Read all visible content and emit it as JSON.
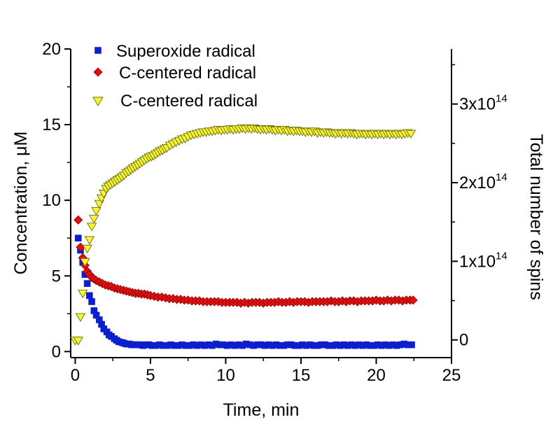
{
  "chart_data": {
    "type": "scatter",
    "title": "",
    "xlabel": "Time, min",
    "ylabel": "Concentration, μM",
    "y2label": "Total number of spins",
    "xlim": [
      -0.3,
      25
    ],
    "ylim": [
      -0.4,
      20
    ],
    "y2lim": [
      -22500000000000.0,
      370000000000000.0
    ],
    "x_ticks": [
      "0",
      "5",
      "10",
      "15",
      "20",
      "25"
    ],
    "y_ticks": [
      "0",
      "5",
      "10",
      "15",
      "20"
    ],
    "y2_ticks": [
      {
        "base": "0",
        "exp": ""
      },
      {
        "base": "1x10",
        "exp": "14"
      },
      {
        "base": "2x10",
        "exp": "14"
      },
      {
        "base": "3x10",
        "exp": "14"
      }
    ],
    "legend_position": "top-left",
    "series": [
      {
        "name": "Superoxide radical",
        "marker": "square",
        "color": "#0b1fcf",
        "axis": "left",
        "x": [
          0.2,
          0.35,
          0.5,
          0.65,
          0.8,
          0.95,
          1.1,
          1.25,
          1.4,
          1.6,
          1.75,
          1.9,
          2.1,
          2.25,
          2.4,
          2.6,
          2.75,
          2.9,
          3.1,
          3.25,
          3.4,
          3.6,
          3.75,
          3.9,
          4.1,
          4.3,
          4.5,
          4.7,
          4.9,
          5.1,
          5.35,
          5.6,
          5.85,
          6.1,
          6.35,
          6.6,
          6.85,
          7.1,
          7.35,
          7.6,
          7.85,
          8.1,
          8.35,
          8.6,
          8.85,
          9.1,
          9.35,
          9.6,
          9.85,
          10.1,
          10.35,
          10.6,
          10.85,
          11.1,
          11.35,
          11.6,
          11.85,
          12.1,
          12.35,
          12.6,
          12.85,
          13.1,
          13.35,
          13.6,
          13.85,
          14.1,
          14.35,
          14.6,
          14.85,
          15.1,
          15.35,
          15.6,
          15.85,
          16.1,
          16.35,
          16.6,
          16.85,
          17.1,
          17.35,
          17.6,
          17.85,
          18.1,
          18.35,
          18.6,
          18.85,
          19.1,
          19.35,
          19.6,
          19.85,
          20.1,
          20.35,
          20.6,
          20.85,
          21.1,
          21.35,
          21.6,
          21.85,
          22.1,
          22.35
        ],
        "y": [
          7.5,
          6.7,
          5.9,
          5.1,
          4.5,
          3.7,
          3.3,
          2.7,
          2.4,
          2.1,
          1.8,
          1.5,
          1.3,
          1.1,
          1.0,
          0.85,
          0.75,
          0.65,
          0.6,
          0.55,
          0.5,
          0.5,
          0.45,
          0.45,
          0.45,
          0.45,
          0.4,
          0.45,
          0.45,
          0.4,
          0.4,
          0.45,
          0.4,
          0.4,
          0.45,
          0.4,
          0.4,
          0.45,
          0.4,
          0.4,
          0.45,
          0.4,
          0.45,
          0.4,
          0.45,
          0.4,
          0.5,
          0.45,
          0.45,
          0.4,
          0.45,
          0.4,
          0.45,
          0.4,
          0.5,
          0.45,
          0.4,
          0.45,
          0.45,
          0.4,
          0.45,
          0.4,
          0.45,
          0.4,
          0.4,
          0.45,
          0.45,
          0.4,
          0.4,
          0.45,
          0.4,
          0.45,
          0.4,
          0.4,
          0.45,
          0.45,
          0.4,
          0.4,
          0.45,
          0.4,
          0.45,
          0.4,
          0.45,
          0.4,
          0.45,
          0.4,
          0.45,
          0.4,
          0.4,
          0.45,
          0.4,
          0.45,
          0.4,
          0.45,
          0.4,
          0.45,
          0.5,
          0.45,
          0.45
        ]
      },
      {
        "name": "C-centered radical",
        "marker": "diamond",
        "color": "#e01010",
        "axis": "left",
        "x": [
          0.2,
          0.35,
          0.5,
          0.65,
          0.8,
          0.95,
          1.1,
          1.25,
          1.4,
          1.6,
          1.8,
          2.0,
          2.2,
          2.4,
          2.6,
          2.8,
          3.0,
          3.2,
          3.4,
          3.6,
          3.8,
          4.0,
          4.2,
          4.4,
          4.6,
          4.8,
          5.0,
          5.25,
          5.5,
          5.75,
          6.0,
          6.25,
          6.5,
          6.75,
          7.0,
          7.25,
          7.5,
          7.75,
          8.0,
          8.25,
          8.5,
          8.75,
          9.0,
          9.25,
          9.5,
          9.75,
          10.0,
          10.25,
          10.5,
          10.75,
          11.0,
          11.25,
          11.5,
          11.75,
          12.0,
          12.25,
          12.5,
          12.75,
          13.0,
          13.25,
          13.5,
          13.75,
          14.0,
          14.25,
          14.5,
          14.75,
          15.0,
          15.25,
          15.5,
          15.75,
          16.0,
          16.25,
          16.5,
          16.75,
          17.0,
          17.25,
          17.5,
          17.75,
          18.0,
          18.25,
          18.5,
          18.75,
          19.0,
          19.25,
          19.5,
          19.75,
          20.0,
          20.25,
          20.5,
          20.75,
          21.0,
          21.25,
          21.5,
          21.75,
          22.0,
          22.25,
          22.45
        ],
        "y": [
          8.7,
          6.9,
          6.2,
          5.7,
          5.3,
          5.1,
          4.9,
          4.8,
          4.7,
          4.6,
          4.5,
          4.4,
          4.35,
          4.3,
          4.2,
          4.15,
          4.1,
          4.05,
          4.0,
          3.95,
          3.9,
          3.85,
          3.85,
          3.8,
          3.8,
          3.75,
          3.7,
          3.65,
          3.6,
          3.6,
          3.55,
          3.5,
          3.5,
          3.45,
          3.45,
          3.4,
          3.4,
          3.35,
          3.35,
          3.35,
          3.3,
          3.3,
          3.3,
          3.3,
          3.3,
          3.25,
          3.25,
          3.25,
          3.25,
          3.25,
          3.2,
          3.25,
          3.2,
          3.25,
          3.25,
          3.25,
          3.2,
          3.25,
          3.25,
          3.25,
          3.3,
          3.25,
          3.25,
          3.3,
          3.25,
          3.3,
          3.3,
          3.3,
          3.25,
          3.3,
          3.3,
          3.3,
          3.3,
          3.3,
          3.35,
          3.3,
          3.3,
          3.35,
          3.3,
          3.35,
          3.35,
          3.3,
          3.35,
          3.35,
          3.35,
          3.35,
          3.4,
          3.35,
          3.35,
          3.4,
          3.35,
          3.4,
          3.4,
          3.35,
          3.4,
          3.4,
          3.4
        ]
      },
      {
        "name": "C-centered radical",
        "marker": "triangle-down",
        "color": "#f5f531",
        "axis": "right",
        "x": [
          0,
          0.2,
          0.35,
          0.5,
          0.65,
          0.8,
          0.95,
          1.1,
          1.25,
          1.4,
          1.6,
          1.75,
          1.9,
          2.05,
          2.2,
          2.35,
          2.5,
          2.65,
          2.8,
          2.95,
          3.1,
          3.25,
          3.4,
          3.55,
          3.7,
          3.85,
          4.0,
          4.15,
          4.3,
          4.45,
          4.6,
          4.75,
          4.9,
          5.05,
          5.2,
          5.35,
          5.5,
          5.65,
          5.8,
          5.95,
          6.1,
          6.3,
          6.5,
          6.7,
          6.9,
          7.1,
          7.3,
          7.5,
          7.7,
          7.9,
          8.1,
          8.3,
          8.5,
          8.7,
          8.9,
          9.1,
          9.3,
          9.5,
          9.7,
          9.9,
          10.1,
          10.3,
          10.5,
          10.7,
          10.9,
          11.1,
          11.3,
          11.5,
          11.7,
          11.9,
          12.1,
          12.3,
          12.5,
          12.7,
          12.9,
          13.1,
          13.3,
          13.5,
          13.7,
          13.9,
          14.1,
          14.3,
          14.5,
          14.7,
          14.9,
          15.1,
          15.3,
          15.5,
          15.7,
          15.9,
          16.1,
          16.3,
          16.5,
          16.7,
          16.9,
          17.1,
          17.3,
          17.5,
          17.7,
          17.9,
          18.1,
          18.3,
          18.5,
          18.7,
          18.9,
          19.1,
          19.3,
          19.5,
          19.7,
          19.9,
          20.1,
          20.3,
          20.5,
          20.7,
          20.9,
          21.1,
          21.3,
          21.5,
          21.7,
          21.9,
          22.1,
          22.3
        ],
        "y": [
          0,
          0,
          30000000000000.0,
          60000000000000.0,
          100000000000000.0,
          117000000000000.0,
          128000000000000.0,
          145000000000000.0,
          155000000000000.0,
          165000000000000.0,
          174000000000000.0,
          181000000000000.0,
          187000000000000.0,
          193000000000000.0,
          196000000000000.0,
          198000000000000.0,
          200000000000000.0,
          202000000000000.0,
          204000000000000.0,
          206000000000000.0,
          208000000000000.0,
          210000000000000.0,
          213000000000000.0,
          215000000000000.0,
          217000000000000.0,
          219000000000000.0,
          221000000000000.0,
          223000000000000.0,
          225000000000000.0,
          227000000000000.0,
          229000000000000.0,
          231000000000000.0,
          233000000000000.0,
          234000000000000.0,
          235000000000000.0,
          237000000000000.0,
          239000000000000.0,
          241000000000000.0,
          242000000000000.0,
          244000000000000.0,
          245000000000000.0,
          248000000000000.0,
          250000000000000.0,
          252000000000000.0,
          254000000000000.0,
          256000000000000.0,
          257000000000000.0,
          259000000000000.0,
          261000000000000.0,
          262000000000000.0,
          263000000000000.0,
          264000000000000.0,
          265000000000000.0,
          265000000000000.0,
          266000000000000.0,
          266000000000000.0,
          267000000000000.0,
          268000000000000.0,
          267000000000000.0,
          268000000000000.0,
          268000000000000.0,
          269000000000000.0,
          268000000000000.0,
          269000000000000.0,
          269000000000000.0,
          270000000000000.0,
          269000000000000.0,
          270000000000000.0,
          269000000000000.0,
          270000000000000.0,
          269000000000000.0,
          268000000000000.0,
          269000000000000.0,
          268000000000000.0,
          269000000000000.0,
          268000000000000.0,
          267000000000000.0,
          268000000000000.0,
          267000000000000.0,
          268000000000000.0,
          266000000000000.0,
          267000000000000.0,
          266000000000000.0,
          267000000000000.0,
          266000000000000.0,
          266000000000000.0,
          265000000000000.0,
          266000000000000.0,
          265000000000000.0,
          266000000000000.0,
          264000000000000.0,
          265000000000000.0,
          264000000000000.0,
          265000000000000.0,
          264000000000000.0,
          264000000000000.0,
          263000000000000.0,
          264000000000000.0,
          263000000000000.0,
          264000000000000.0,
          263000000000000.0,
          264000000000000.0,
          263000000000000.0,
          262000000000000.0,
          263000000000000.0,
          263000000000000.0,
          262000000000000.0,
          263000000000000.0,
          262000000000000.0,
          263000000000000.0,
          262000000000000.0,
          263000000000000.0,
          262000000000000.0,
          263000000000000.0,
          262000000000000.0,
          263000000000000.0,
          262000000000000.0,
          263000000000000.0,
          262000000000000.0,
          263000000000000.0,
          264000000000000.0,
          263000000000000.0
        ]
      }
    ]
  }
}
